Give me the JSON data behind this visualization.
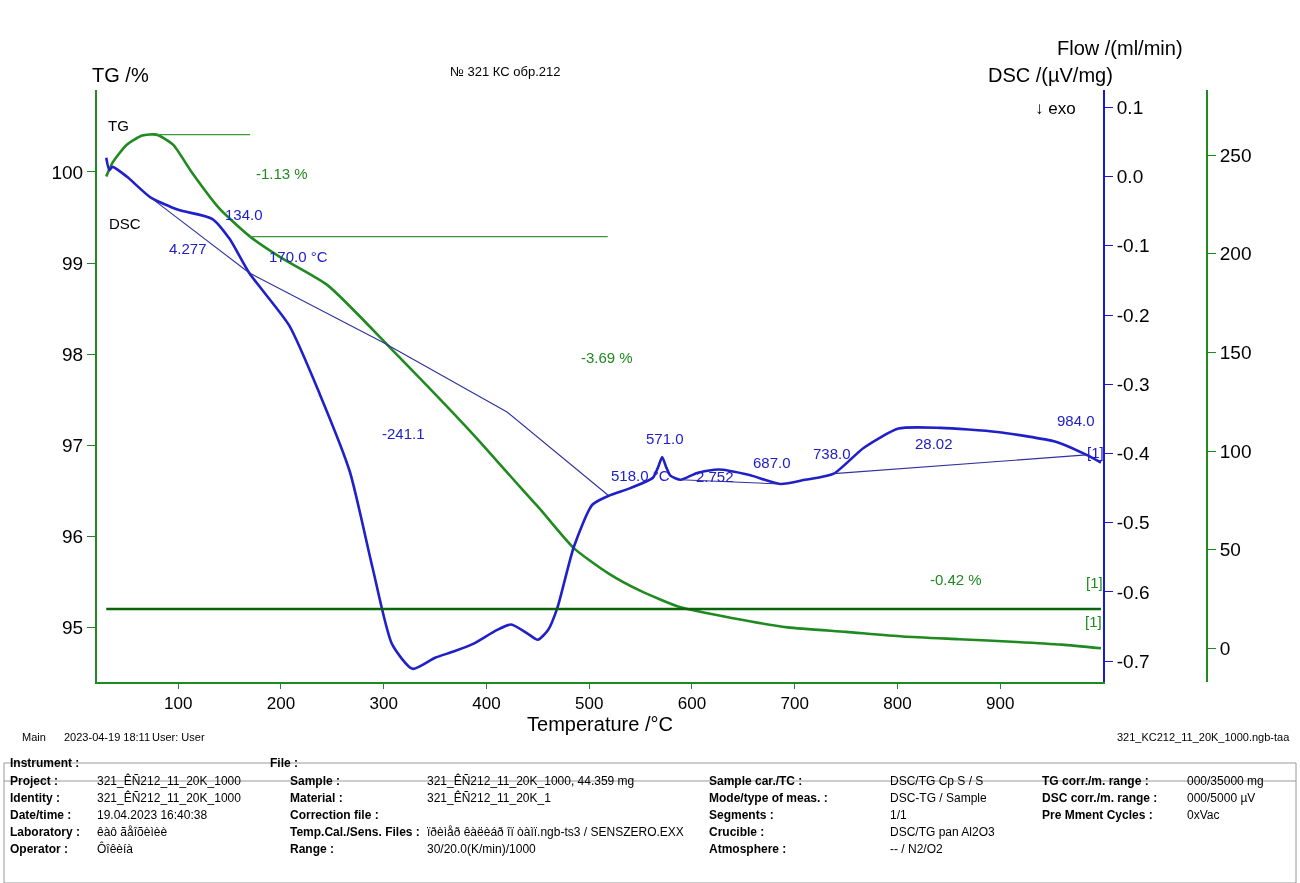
{
  "chart_data": {
    "type": "line",
    "title": "№ 321 КС обр.212",
    "xlabel": "Temperature /°C",
    "ylabel": "TG /%",
    "y2label": "DSC /(µV/mg)",
    "y3label": "Flow /(ml/min)",
    "xlim": [
      21,
      1000
    ],
    "xticks": [
      100,
      200,
      300,
      400,
      500,
      600,
      700,
      800,
      900
    ],
    "ylim": [
      94.4,
      100.9
    ],
    "yticks": [
      95,
      96,
      97,
      98,
      99,
      100
    ],
    "y2lim": [
      -0.73,
      0.125
    ],
    "y2ticks": [
      -0.7,
      -0.6,
      -0.5,
      -0.4,
      -0.3,
      -0.2,
      -0.1,
      {
        "value": 0,
        "label": "0.0"
      },
      0.1
    ],
    "y3lim": [
      -17,
      283
    ],
    "y3ticks": [
      0,
      50,
      100,
      150,
      200,
      250
    ],
    "series": [
      {
        "color": "#1f8a1f",
        "axis": "y",
        "x": [
          30,
          36,
          50,
          65,
          79,
          95,
          113,
          140,
          170,
          200,
          245,
          308,
          387,
          432,
          452,
          485,
          519,
          550,
          589,
          640,
          693,
          750,
          805,
          860,
          916,
          960,
          998
        ],
        "values": [
          99.95,
          100.1,
          100.3,
          100.4,
          100.41,
          100.3,
          100.0,
          99.6,
          99.29,
          99.06,
          98.76,
          98.05,
          97.12,
          96.55,
          96.3,
          95.87,
          95.59,
          95.4,
          95.22,
          95.1,
          95.0,
          94.95,
          94.9,
          94.87,
          94.84,
          94.81,
          94.77
        ]
      },
      {
        "color": "#2020c8",
        "axis": "y2",
        "x": [
          30,
          33,
          36,
          50,
          73,
          100,
          133,
          150,
          169,
          208,
          238,
          267,
          289,
          308,
          328,
          350,
          368,
          387,
          410,
          424,
          440,
          450,
          460,
          469,
          485,
          503,
          519,
          540,
          562,
          567,
          571,
          575,
          579,
          589,
          605,
          626,
          656,
          686,
          710,
          738,
          767,
          801,
          842,
          897,
          954,
          984,
          998
        ],
        "values": [
          0.027,
          0.009,
          0.014,
          0.0,
          -0.03,
          -0.048,
          -0.061,
          -0.09,
          -0.139,
          -0.215,
          -0.315,
          -0.426,
          -0.564,
          -0.675,
          -0.711,
          -0.695,
          -0.686,
          -0.675,
          -0.655,
          -0.647,
          -0.66,
          -0.669,
          -0.655,
          -0.623,
          -0.535,
          -0.474,
          -0.461,
          -0.45,
          -0.435,
          -0.42,
          -0.405,
          -0.42,
          -0.432,
          -0.438,
          -0.428,
          -0.423,
          -0.431,
          -0.444,
          -0.438,
          -0.429,
          -0.392,
          -0.364,
          -0.363,
          -0.369,
          -0.383,
          -0.402,
          -0.413
        ]
      },
      {
        "color": "#0a640a",
        "axis": "y3",
        "x": [
          30,
          998
        ],
        "values": [
          20,
          20
        ]
      },
      {
        "color": "#3030a0",
        "axis": "y2",
        "x": [
          73,
          169
        ],
        "values": [
          -0.03,
          -0.139
        ]
      },
      {
        "color": "#3030a0",
        "axis": "y2",
        "x": [
          169,
          300,
          420,
          519
        ],
        "values": [
          -0.139,
          -0.24,
          -0.34,
          -0.461
        ]
      },
      {
        "color": "#3030a0",
        "axis": "y2",
        "x": [
          589,
          686
        ],
        "values": [
          -0.438,
          -0.444
        ]
      },
      {
        "color": "#3030a0",
        "axis": "y2",
        "x": [
          738,
          984
        ],
        "values": [
          -0.429,
          -0.402
        ]
      },
      {
        "color": "#3a9a3a",
        "axis": "y",
        "x": [
          79,
          170
        ],
        "values": [
          100.41,
          100.41
        ]
      },
      {
        "color": "#3a9a3a",
        "axis": "y",
        "x": [
          170,
          518
        ],
        "values": [
          99.29,
          99.29
        ]
      }
    ],
    "annotations": [
      "TG",
      "DSC",
      "-1.13 %",
      "134.0",
      "4.277",
      "170.0 °C",
      "-3.69 %",
      "-241.1",
      "571.0",
      "518.0 °C",
      "2.752",
      "687.0",
      "738.0",
      "28.02",
      "984.0",
      "[1]",
      "[1]",
      "[1]",
      "-0.42 %",
      "↓ exo",
      "Main",
      "2023-04-19 18:11",
      "User: User",
      "321_KC212_11_20K_1000.ngb-taa",
      "Instrument :",
      "File :",
      "Project :",
      "Identity :",
      "Date/time :",
      "Laboratory :",
      "Operator :",
      "321_ÊÑ212_11_20K_1000",
      "321_ÊÑ212_11_20K_1000",
      "19.04.2023 16:40:38",
      "êàô ãåîõèìèè",
      "Ôîêèíà",
      "Sample :",
      "Material :",
      "Correction file :",
      "Temp.Cal./Sens. Files :",
      "Range :",
      "321_ÊÑ212_11_20K_1000, 44.359 mg",
      "321_ÊÑ212_11_20K_1",
      "ïðèìåð êàëèáð îï òàìï.ngb-ts3 / SENSZERO.EXX",
      "30/20.0(K/min)/1000",
      "Sample car./TC :",
      "Mode/type of meas. :",
      "Segments :",
      "Crucible :",
      "Atmosphere :",
      "DSC/TG Cp S / S",
      "DSC-TG / Sample",
      "1/1",
      "DSC/TG pan Al2O3",
      "-- / N2/O2",
      "TG corr./m. range :",
      "DSC corr./m. range :",
      "Pre Mment Cycles :",
      "000/35000 mg",
      "000/5000 µV",
      "0xVac"
    ]
  }
}
